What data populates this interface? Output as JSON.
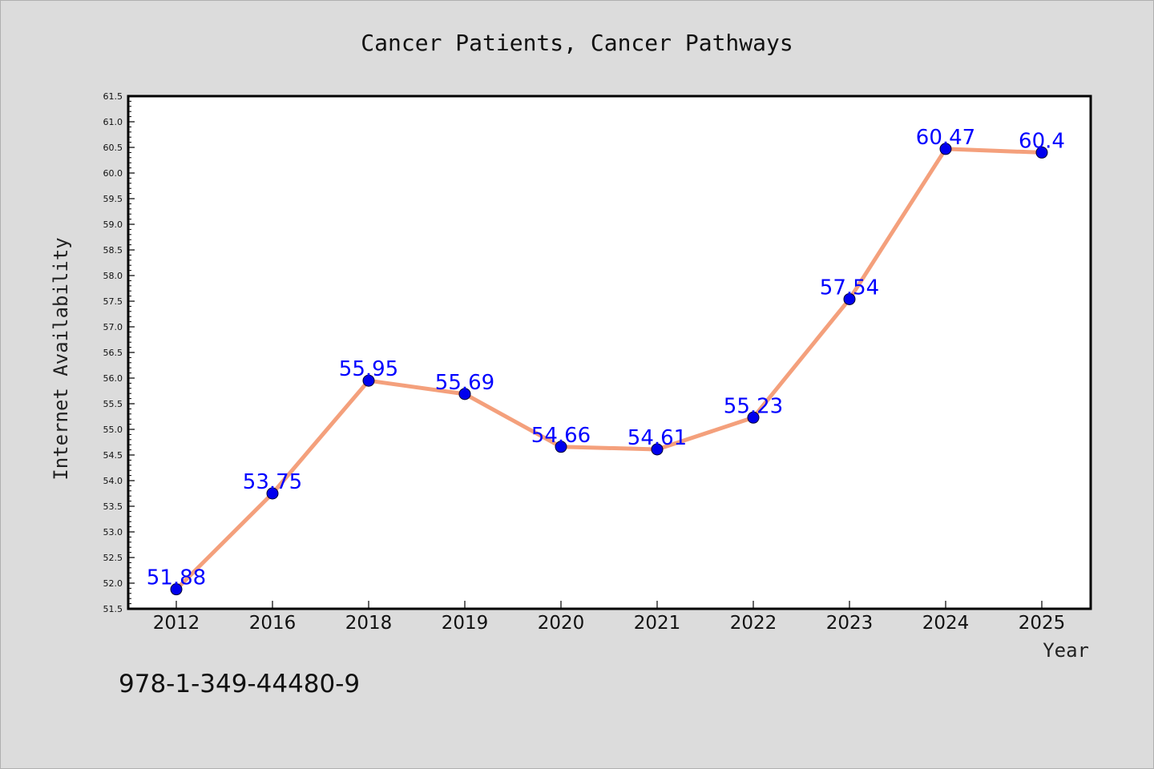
{
  "chart_data": {
    "type": "line",
    "title": "Cancer Patients, Cancer Pathways",
    "xlabel": "Year",
    "ylabel": "Internet Availability",
    "categories": [
      "2012",
      "2016",
      "2018",
      "2019",
      "2020",
      "2021",
      "2022",
      "2023",
      "2024",
      "2025"
    ],
    "series": [
      {
        "values": [
          51.88,
          53.75,
          55.95,
          55.69,
          54.66,
          54.61,
          55.23,
          57.54,
          60.47,
          60.4
        ],
        "labels": [
          "51.88",
          "53.75",
          "55.95",
          "55.69",
          "54.66",
          "54.61",
          "55.23",
          "57.54",
          "60.47",
          "60.4"
        ]
      }
    ],
    "ylim": [
      51.5,
      61.5
    ],
    "yticks": [
      "51.5",
      "52.0",
      "52.5",
      "53.0",
      "53.5",
      "54.0",
      "54.5",
      "55.0",
      "55.5",
      "56.0",
      "56.5",
      "57.0",
      "57.5",
      "58.0",
      "58.5",
      "59.0",
      "59.5",
      "60.0",
      "60.5",
      "61.0",
      "61.5"
    ],
    "grid": false,
    "line_color": "#f4a07c",
    "marker_color": "#0000ee",
    "label_color": "#0000ff"
  },
  "footer_text": "978-1-349-44480-9"
}
